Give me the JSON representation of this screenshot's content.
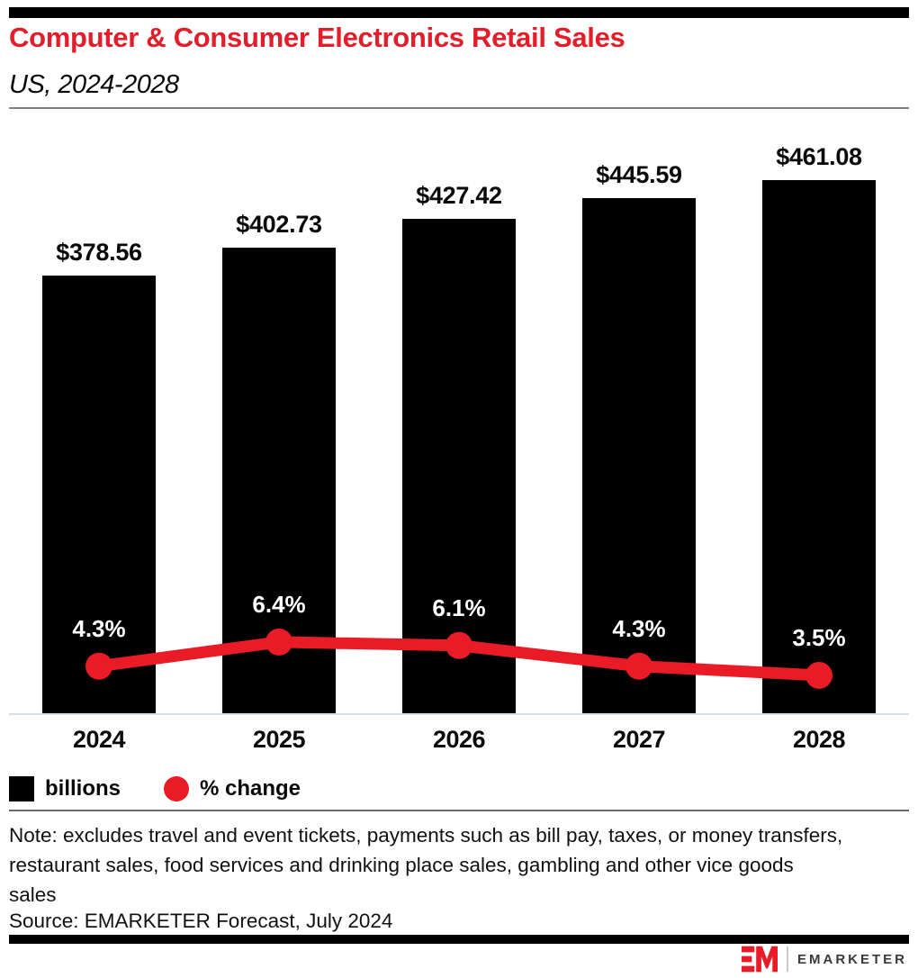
{
  "header": {
    "title": "Computer & Consumer Electronics Retail Sales",
    "subtitle": "US, 2024-2028"
  },
  "chart_data": {
    "type": "bar",
    "title": "Computer & Consumer Electronics Retail Sales",
    "subtitle": "US, 2024-2028",
    "categories": [
      "2024",
      "2025",
      "2026",
      "2027",
      "2028"
    ],
    "series": [
      {
        "name": "billions",
        "type": "bar",
        "values": [
          378.56,
          402.73,
          427.42,
          445.59,
          461.08
        ],
        "labels": [
          "$378.56",
          "$402.73",
          "$427.42",
          "$445.59",
          "$461.08"
        ]
      },
      {
        "name": "% change",
        "type": "line",
        "values": [
          4.3,
          6.4,
          6.1,
          4.3,
          3.5
        ],
        "labels": [
          "4.3%",
          "6.4%",
          "6.1%",
          "4.3%",
          "3.5%"
        ]
      }
    ],
    "xlabel": "",
    "ylabel": "",
    "legend_position": "bottom-left",
    "grid": false,
    "bar_axis_range": [
      0,
      507
    ],
    "colors": {
      "bar": "#000000",
      "line": "#E81B26"
    }
  },
  "legend": {
    "bar_label": "billions",
    "line_label": "% change"
  },
  "footnote": {
    "note": "Note: excludes travel and event tickets, payments such as bill pay, taxes, or money transfers, restaurant sales, food services and drinking place sales, gambling and other vice goods sales",
    "source": "Source: EMARKETER Forecast, July 2024"
  },
  "brand": {
    "wordmark": "EMARKETER"
  },
  "colors": {
    "accent_red": "#E31E2B",
    "line_red": "#E81B26",
    "bar_black": "#000000",
    "axis_line": "#D7DEE9"
  }
}
